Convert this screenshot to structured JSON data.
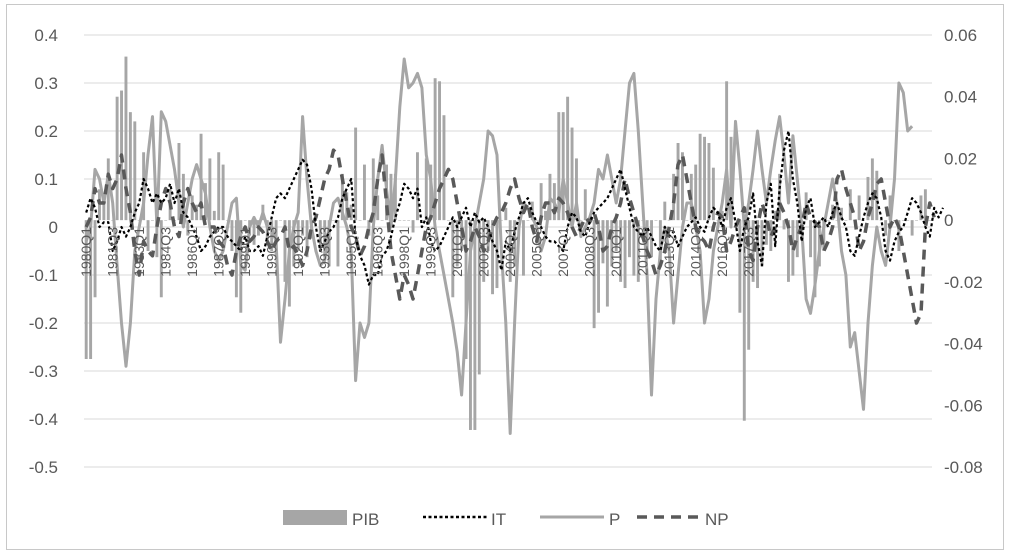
{
  "chart_data": {
    "type": "bar+line (dual axis)",
    "title": "",
    "y_left": {
      "ticks": [
        "0.4",
        "0.3",
        "0.2",
        "0.1",
        "0",
        "-0.1",
        "-0.2",
        "-0.3",
        "-0.4",
        "-0.5"
      ],
      "ylim": [
        -0.5,
        0.4
      ]
    },
    "y_right": {
      "ticks": [
        "0.06",
        "0.04",
        "0.02",
        "0",
        "-0.02",
        "-0.04",
        "-0.06",
        "-0.08"
      ],
      "ylim": [
        -0.08,
        0.06
      ]
    },
    "x_start_year": 1980,
    "x_tick_labels": [
      "1980Q1",
      "1981Q3",
      "1983Q1",
      "1984Q3",
      "1986Q1",
      "1987Q3",
      "1989Q1",
      "1990Q3",
      "1992Q1",
      "1993Q3",
      "1995Q1",
      "1996Q3",
      "1998Q1",
      "1999Q3",
      "2001Q1",
      "2002Q3",
      "2004Q1",
      "2005Q3",
      "2007Q1",
      "2008Q3",
      "2010Q1",
      "2011Q3",
      "2013Q1",
      "2014Q3",
      "2016Q1",
      "2017Q3"
    ],
    "legend": {
      "position": "bottom",
      "entries": [
        "PIB",
        "IT",
        "P",
        "NP"
      ]
    },
    "series": [
      {
        "name": "PIB",
        "kind": "bar",
        "axis": "right",
        "color": "#a6a6a6",
        "values": [
          -0.045,
          -0.045,
          -0.025,
          0.01,
          0.007,
          0.02,
          0.0,
          0.04,
          0.042,
          0.053,
          0.035,
          0.032,
          0.0,
          0.022,
          -0.01,
          0.0,
          -0.012,
          -0.025,
          0.0,
          0.01,
          0.0,
          0.025,
          0.015,
          -0.005,
          0.008,
          0.005,
          0.028,
          0.012,
          0.02,
          0.003,
          0.022,
          0.018,
          0.0,
          -0.01,
          -0.025,
          -0.03,
          0.0,
          -0.005,
          -0.008,
          -0.005,
          0.005,
          -0.006,
          -0.01,
          -0.012,
          0.0,
          -0.02,
          -0.028,
          -0.015,
          -0.01,
          -0.005,
          -0.012,
          -0.006,
          0.0,
          -0.01,
          -0.012,
          -0.015,
          0.0,
          -0.015,
          0.015,
          0.009,
          0.005,
          0.03,
          0.0,
          0.018,
          -0.005,
          0.02,
          0.008,
          0.0,
          0.018,
          0.015,
          0.015,
          0.0,
          0.0,
          0.0,
          -0.004,
          0.022,
          0.0,
          0.02,
          0.018,
          0.046,
          0.045,
          0.034,
          0.0,
          -0.025,
          -0.015,
          -0.01,
          -0.045,
          -0.068,
          -0.068,
          -0.05,
          -0.02,
          -0.01,
          -0.024,
          -0.022,
          0.0,
          0.004,
          -0.02,
          -0.015,
          0.0,
          -0.018,
          0.0,
          0.006,
          0.0,
          0.012,
          0.003,
          0.015,
          0.012,
          0.035,
          0.035,
          0.04,
          0.03,
          0.02,
          0.0,
          0.01,
          0.0,
          -0.035,
          -0.03,
          -0.014,
          -0.028,
          -0.015,
          -0.01,
          -0.02,
          -0.022,
          -0.012,
          -0.018,
          -0.02,
          0.0,
          -0.01,
          -0.012,
          0.0,
          -0.015,
          0.006,
          0.0,
          0.015,
          0.025,
          0.022,
          0.0,
          0.015,
          0.018,
          0.028,
          0.027,
          0.025,
          0.017,
          0.0,
          0.003,
          0.045,
          0.027,
          0.0,
          -0.03,
          -0.065,
          -0.042,
          -0.02,
          -0.022,
          -0.015,
          -0.008,
          -0.01,
          0.003,
          0.015,
          -0.003,
          -0.02,
          -0.018,
          -0.012,
          -0.003,
          0.009,
          -0.012,
          -0.025,
          -0.015,
          -0.01,
          0.0,
          0.005,
          0.0,
          0.004,
          0.0,
          0.01,
          0.0,
          0.008,
          0.0,
          0.014,
          0.02,
          0.016,
          0.0,
          -0.005,
          0.008,
          0.0,
          -0.01,
          0.0,
          0.0,
          -0.005,
          0.0,
          0.008,
          0.01,
          0.0
        ]
      },
      {
        "name": "IT",
        "kind": "line",
        "style": "dotted",
        "axis": "left",
        "color": "#000000",
        "values": [
          0.03,
          0.06,
          0.04,
          0.0,
          0.01,
          0.01,
          -0.05,
          -0.03,
          0.0,
          -0.02,
          0.0,
          0.03,
          0.05,
          0.1,
          0.08,
          0.05,
          0.07,
          0.05,
          0.06,
          0.09,
          0.05,
          0.08,
          0.03,
          0.02,
          0.0,
          -0.02,
          -0.05,
          -0.04,
          -0.02,
          -0.01,
          0.0,
          0.0,
          -0.02,
          -0.03,
          -0.04,
          -0.05,
          -0.02,
          -0.05,
          -0.05,
          -0.04,
          -0.06,
          -0.02,
          0.02,
          0.06,
          0.07,
          0.06,
          0.08,
          0.1,
          0.12,
          0.14,
          0.13,
          0.08,
          0.0,
          -0.05,
          -0.03,
          -0.01,
          0.0,
          0.02,
          0.06,
          0.08,
          0.1,
          -0.02,
          -0.06,
          -0.08,
          -0.12,
          -0.1,
          -0.1,
          -0.06,
          -0.05,
          -0.02,
          0.02,
          0.05,
          0.09,
          0.08,
          0.06,
          0.08,
          0.0,
          0.02,
          -0.03,
          -0.05,
          -0.04,
          -0.02,
          0.0,
          0.02,
          0.0,
          0.02,
          0.04,
          0.0,
          0.03,
          0.01,
          0.02,
          0.0,
          -0.03,
          -0.05,
          -0.09,
          -0.03,
          -0.05,
          -0.01,
          0.02,
          0.05,
          0.06,
          0.03,
          0.01,
          0.0,
          -0.02,
          -0.03,
          -0.03,
          -0.04,
          -0.05,
          0.0,
          0.03,
          0.02,
          -0.01,
          -0.02,
          0.01,
          0.03,
          0.04,
          0.05,
          0.06,
          0.08,
          0.1,
          0.12,
          0.08,
          0.04,
          0.0,
          -0.01,
          -0.02,
          0.0,
          -0.02,
          -0.04,
          -0.05,
          0.0,
          -0.02,
          -0.01,
          -0.04,
          -0.02,
          0.0,
          0.01,
          0.02,
          0.0,
          -0.01,
          0.02,
          0.04,
          0.03,
          0.0,
          0.04,
          0.06,
          0.01,
          -0.05,
          0.0,
          0.02,
          0.07,
          -0.03,
          -0.08,
          0.05,
          0.09,
          -0.04,
          0.08,
          0.16,
          0.2,
          0.1,
          0.05,
          -0.03,
          0.04,
          0.06,
          0.0,
          0.01,
          0.02,
          0.0,
          0.03,
          0.05,
          0.02,
          0.0,
          -0.05,
          -0.06,
          -0.02,
          0.02,
          0.05,
          0.07,
          0.06,
          0.02,
          -0.05,
          -0.07,
          -0.03,
          -0.01,
          0.0,
          0.03,
          0.06,
          0.05,
          0.03,
          0.0,
          -0.02,
          0.04,
          0.02,
          0.04
        ]
      },
      {
        "name": "P",
        "kind": "line",
        "style": "solid",
        "axis": "left",
        "color": "#a6a6a6",
        "values": [
          -0.03,
          0.0,
          0.12,
          0.1,
          0.05,
          0.11,
          0.05,
          -0.08,
          -0.2,
          -0.29,
          -0.2,
          -0.05,
          0.0,
          0.05,
          0.15,
          0.23,
          0.0,
          0.24,
          0.22,
          0.17,
          0.12,
          0.05,
          0.0,
          0.05,
          0.1,
          0.13,
          0.1,
          0.07,
          0.0,
          -0.05,
          -0.07,
          -0.05,
          0.0,
          0.05,
          0.06,
          -0.08,
          -0.09,
          0.0,
          0.02,
          0.0,
          0.03,
          0.0,
          0.0,
          -0.03,
          -0.24,
          -0.15,
          -0.05,
          0.0,
          0.03,
          0.23,
          0.1,
          0.0,
          -0.05,
          -0.08,
          -0.07,
          0.0,
          0.05,
          0.06,
          0.03,
          0.0,
          -0.05,
          -0.32,
          -0.2,
          -0.23,
          -0.2,
          0.0,
          0.1,
          0.17,
          0.08,
          0.0,
          0.1,
          0.25,
          0.35,
          0.29,
          0.3,
          0.32,
          0.29,
          0.15,
          0.1,
          0.0,
          -0.05,
          -0.1,
          -0.15,
          -0.2,
          -0.26,
          -0.35,
          -0.2,
          -0.05,
          0.0,
          0.05,
          0.1,
          0.2,
          0.19,
          0.15,
          -0.05,
          -0.2,
          -0.43,
          -0.2,
          0.0,
          0.05,
          0.04,
          0.02,
          0.0,
          -0.05,
          -0.02,
          0.06,
          0.05,
          0.03,
          0.1,
          0.05,
          0.0,
          0.05,
          -0.02,
          0.0,
          0.02,
          0.05,
          0.12,
          0.1,
          0.15,
          0.1,
          0.05,
          0.1,
          0.2,
          0.3,
          0.32,
          0.2,
          0.05,
          -0.1,
          -0.35,
          -0.15,
          -0.05,
          0.0,
          -0.05,
          -0.2,
          -0.1,
          0.0,
          0.05,
          0.05,
          0.0,
          -0.05,
          -0.2,
          -0.15,
          -0.05,
          0.0,
          0.05,
          0.12,
          0.0,
          0.22,
          0.12,
          0.0,
          0.05,
          0.12,
          0.2,
          0.12,
          0.05,
          0.12,
          0.18,
          0.23,
          0.15,
          0.05,
          0.19,
          0.1,
          0.0,
          -0.15,
          -0.18,
          -0.12,
          -0.05,
          0.0,
          0.05,
          0.1,
          0.05,
          -0.05,
          -0.1,
          -0.25,
          -0.22,
          -0.3,
          -0.38,
          -0.2,
          -0.08,
          0.0,
          -0.05,
          -0.08,
          0.0,
          0.1,
          0.3,
          0.28,
          0.2,
          0.21
        ]
      },
      {
        "name": "NP",
        "kind": "line",
        "style": "dashed",
        "axis": "left",
        "color": "#595959",
        "values": [
          0.0,
          0.02,
          0.08,
          0.05,
          0.05,
          0.11,
          0.08,
          0.1,
          0.15,
          0.08,
          0.03,
          -0.05,
          -0.1,
          -0.03,
          -0.05,
          -0.06,
          0.0,
          0.05,
          0.08,
          0.05,
          0.0,
          -0.02,
          0.05,
          0.08,
          0.05,
          0.03,
          0.05,
          0.0,
          0.0,
          0.0,
          -0.03,
          -0.04,
          -0.08,
          -0.1,
          -0.05,
          -0.02,
          0.0,
          -0.03,
          -0.02,
          0.0,
          -0.01,
          -0.03,
          -0.05,
          -0.03,
          -0.02,
          0.0,
          -0.05,
          -0.04,
          -0.06,
          -0.08,
          -0.05,
          0.0,
          0.02,
          0.06,
          0.1,
          0.12,
          0.16,
          0.15,
          0.1,
          0.05,
          0.0,
          -0.02,
          -0.06,
          -0.04,
          0.0,
          0.03,
          0.1,
          0.15,
          0.05,
          -0.05,
          -0.1,
          -0.15,
          -0.1,
          -0.12,
          -0.15,
          -0.1,
          -0.05,
          0.0,
          0.02,
          0.05,
          0.08,
          0.1,
          0.12,
          0.1,
          0.05,
          0.0,
          -0.05,
          -0.03,
          0.0,
          -0.02,
          -0.05,
          -0.03,
          0.0,
          0.02,
          0.03,
          0.05,
          0.08,
          0.1,
          0.06,
          0.03,
          0.05,
          0.0,
          -0.03,
          0.02,
          0.05,
          0.05,
          0.03,
          0.06,
          0.05,
          0.03,
          0.0,
          -0.02,
          0.0,
          0.02,
          0.01,
          0.03,
          0.0,
          -0.05,
          -0.04,
          0.0,
          0.02,
          0.05,
          0.1,
          0.06,
          0.03,
          0.0,
          -0.02,
          -0.05,
          -0.07,
          -0.1,
          -0.08,
          -0.05,
          0.0,
          0.05,
          0.13,
          0.15,
          0.1,
          0.05,
          0.0,
          -0.02,
          -0.03,
          -0.05,
          0.0,
          0.03,
          0.02,
          -0.05,
          -0.03,
          0.0,
          0.02,
          0.04,
          -0.05,
          -0.07,
          0.0,
          0.05,
          0.02,
          -0.02,
          0.0,
          0.05,
          0.03,
          0.0,
          -0.05,
          -0.02,
          0.0,
          0.05,
          0.02,
          0.01,
          0.0,
          -0.05,
          -0.03,
          0.0,
          0.1,
          0.12,
          0.08,
          0.05,
          0.02,
          -0.05,
          -0.03,
          0.02,
          0.05,
          0.09,
          0.1,
          0.05,
          0.0,
          0.02,
          0.0,
          -0.05,
          -0.1,
          -0.15,
          -0.2,
          -0.18,
          0.0,
          0.05,
          0.02
        ]
      }
    ]
  }
}
